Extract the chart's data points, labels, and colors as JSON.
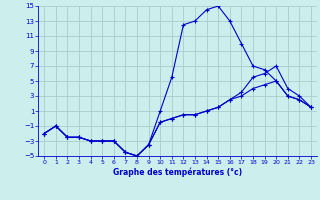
{
  "title": "Graphe des températures (°c)",
  "bg_color": "#cceeed",
  "grid_color": "#aacccc",
  "line_color": "#0000cc",
  "xlim": [
    -0.5,
    23.5
  ],
  "ylim": [
    -5,
    15
  ],
  "yticks": [
    -5,
    -3,
    -1,
    1,
    3,
    5,
    7,
    9,
    11,
    13,
    15
  ],
  "xticks": [
    0,
    1,
    2,
    3,
    4,
    5,
    6,
    7,
    8,
    9,
    10,
    11,
    12,
    13,
    14,
    15,
    16,
    17,
    18,
    19,
    20,
    21,
    22,
    23
  ],
  "series1_x": [
    0,
    1,
    2,
    3,
    4,
    5,
    6,
    7,
    8,
    9,
    10,
    11,
    12,
    13,
    14,
    15,
    16,
    17,
    18,
    19,
    20,
    21,
    22,
    23
  ],
  "series1_y": [
    -2,
    -1,
    -2.5,
    -2.5,
    -3,
    -3,
    -3,
    -4.5,
    -5,
    -3.5,
    1,
    5.5,
    12.5,
    13,
    14.5,
    15,
    13,
    10,
    7,
    6.5,
    5,
    3,
    2.5,
    1.5
  ],
  "series2_x": [
    0,
    1,
    2,
    3,
    4,
    5,
    6,
    7,
    8,
    9,
    10,
    11,
    12,
    13,
    14,
    15,
    16,
    17,
    18,
    19,
    20,
    21,
    22,
    23
  ],
  "series2_y": [
    -2,
    -1,
    -2.5,
    -2.5,
    -3,
    -3,
    -3,
    -4.5,
    -5,
    -3.5,
    -0.5,
    0,
    0.5,
    0.5,
    1,
    1.5,
    2.5,
    3.5,
    5.5,
    6,
    7,
    4,
    3,
    1.5
  ],
  "series3_x": [
    0,
    1,
    2,
    3,
    4,
    5,
    6,
    7,
    8,
    9,
    10,
    11,
    12,
    13,
    14,
    15,
    16,
    17,
    18,
    19,
    20,
    21,
    22,
    23
  ],
  "series3_y": [
    -2,
    -1,
    -2.5,
    -2.5,
    -3,
    -3,
    -3,
    -4.5,
    -5,
    -3.5,
    -0.5,
    0,
    0.5,
    0.5,
    1,
    1.5,
    2.5,
    3,
    4,
    4.5,
    5,
    3,
    2.5,
    1.5
  ]
}
